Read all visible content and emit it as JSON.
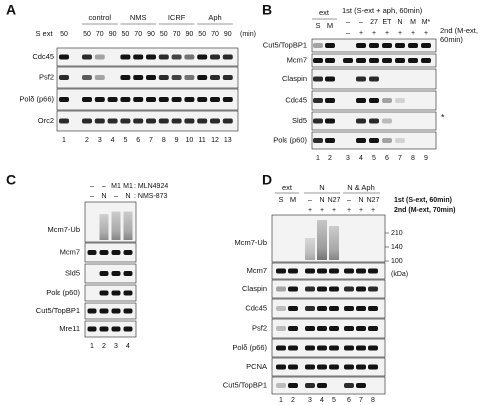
{
  "panel_a": {
    "label": "A",
    "groups": [
      "control",
      "NMS",
      "ICRF",
      "Aph"
    ],
    "first_col": "S ext",
    "times": [
      "50",
      "50",
      "70",
      "90",
      "50",
      "70",
      "90",
      "50",
      "70",
      "90",
      "50",
      "70",
      "90"
    ],
    "unit": "(min)",
    "rows": [
      "Cdc45",
      "Psf2",
      "Polδ (p66)",
      "Orc2"
    ],
    "lanes": [
      "1",
      "2",
      "3",
      "4",
      "5",
      "6",
      "7",
      "8",
      "9",
      "10",
      "11",
      "12",
      "13"
    ]
  },
  "panel_b": {
    "label": "B",
    "ext": "ext",
    "ext_lanes": [
      "S",
      "M"
    ],
    "first": "1st (S-ext + aph, 60min)",
    "first_row": [
      "–",
      "–",
      "27",
      "ET",
      "N",
      "M",
      "M*"
    ],
    "second_row": [
      "–",
      "+",
      "+",
      "+",
      "+",
      "+",
      "+"
    ],
    "second": [
      "2nd (M-ext,",
      "60min)"
    ],
    "rows": [
      "Cut5/TopBP1",
      "Mcm7",
      "Claspin",
      "Cdc45",
      "Sld5",
      "Polε (p60)"
    ],
    "star": "*",
    "lanes": [
      "1",
      "2",
      "3",
      "4",
      "5",
      "6",
      "7",
      "8",
      "9"
    ]
  },
  "panel_c": {
    "label": "C",
    "row1": [
      "–",
      "–",
      "M1",
      "M1"
    ],
    "row1_name": ": MLN4924",
    "row2": [
      "–",
      "N",
      "–",
      "N"
    ],
    "row2_name": ": NMS-873",
    "rows": [
      "Mcm7-Ub",
      "Mcm7",
      "Sld5",
      "Polε (p60)",
      "Cut5/TopBP1",
      "Mre11"
    ],
    "lanes": [
      "1",
      "2",
      "3",
      "4"
    ]
  },
  "panel_d": {
    "label": "D",
    "ext": "ext",
    "ext_lanes": [
      "S",
      "M"
    ],
    "group1": "N",
    "group2": "N & Aph",
    "first": "1st (S-ext, 60min)",
    "first_row": [
      "–",
      "N",
      "N27",
      "–",
      "N",
      "N27"
    ],
    "second": "2nd (M-ext, 70min)",
    "second_row": [
      "+",
      "+",
      "+",
      "+",
      "+",
      "+"
    ],
    "markers": [
      "210",
      "140",
      "100",
      "(kDa)"
    ],
    "rows": [
      "Mcm7-Ub",
      "Mcm7",
      "Claspin",
      "Cdc45",
      "Psf2",
      "Polδ (p66)",
      "PCNA",
      "Cut5/TopBP1"
    ],
    "lanes": [
      "1",
      "2",
      "3",
      "4",
      "5",
      "6",
      "7",
      "8"
    ]
  }
}
